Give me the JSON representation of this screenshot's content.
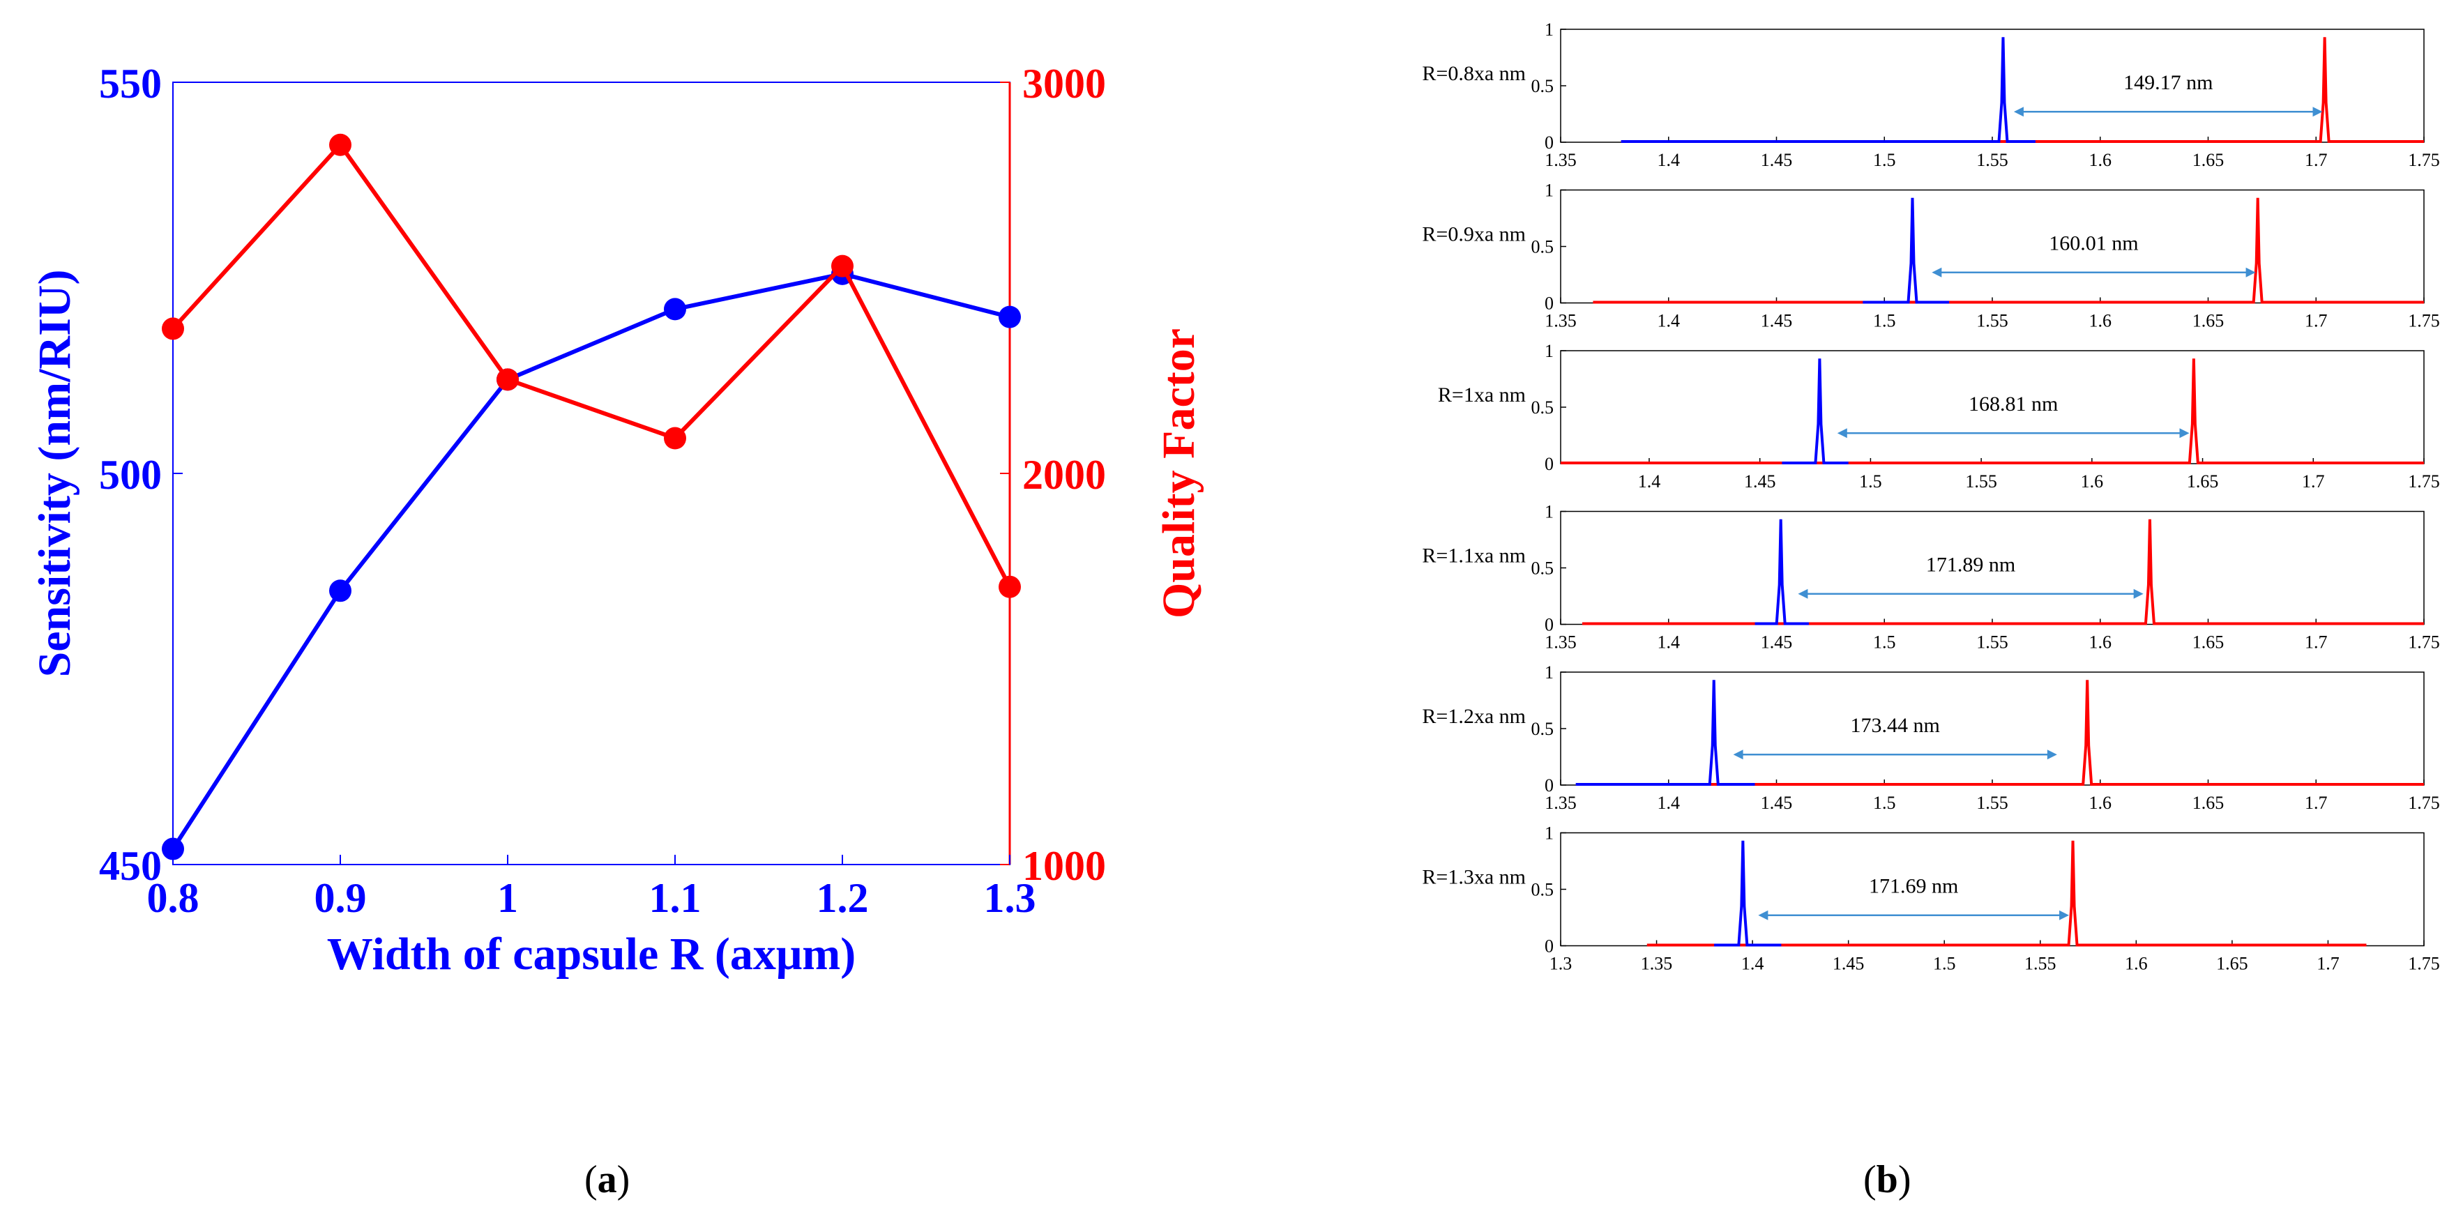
{
  "colors": {
    "blue": "#0000ff",
    "red": "#ff0000",
    "black": "#000000",
    "arrow": "#3f8fd2"
  },
  "panel_labels": {
    "a_open": "(",
    "a_letter": "a",
    "a_close": ")",
    "b_open": "(",
    "b_letter": "b",
    "b_close": ")"
  },
  "chart_data": [
    {
      "type": "line",
      "title": "",
      "xlabel": "Width of capsule R (axμm)",
      "ylabel_left": "Sensitivity (nm/RIU)",
      "ylabel_right": "Quality Factor",
      "x": [
        0.8,
        0.9,
        1.0,
        1.1,
        1.2,
        1.3
      ],
      "x_ticks": [
        "0.8",
        "0.9",
        "1",
        "1.1",
        "1.2",
        "1.3"
      ],
      "xlim": [
        0.8,
        1.3
      ],
      "ylim_left": [
        450,
        550
      ],
      "ylim_right": [
        1000,
        3000
      ],
      "y_ticks_left": [
        "450",
        "500",
        "550"
      ],
      "y_ticks_right": [
        "1000",
        "2000",
        "3000"
      ],
      "series": [
        {
          "name": "Sensitivity",
          "axis": "left",
          "color": "#0000ff",
          "values": [
            452,
            485,
            512,
            521,
            525.5,
            520
          ]
        },
        {
          "name": "Quality Factor",
          "axis": "right",
          "color": "#ff0000",
          "values": [
            2370,
            2840,
            2240,
            2090,
            2530,
            1710
          ]
        }
      ]
    },
    {
      "type": "line",
      "subplots": [
        {
          "label": "R=0.8xa nm",
          "xlim": [
            1.35,
            1.75
          ],
          "x_ticks": [
            "1.35",
            "1.4",
            "1.45",
            "1.5",
            "1.55",
            "1.6",
            "1.65",
            "1.7",
            "1.75"
          ],
          "blue_peak": 1.555,
          "blue_range": [
            1.378,
            1.57
          ],
          "red_peak": 1.704,
          "red_range": [
            1.378,
            1.75
          ],
          "annotation": "149.17 nm",
          "arrow": [
            1.56,
            1.703
          ]
        },
        {
          "label": "R=0.9xa nm",
          "xlim": [
            1.35,
            1.75
          ],
          "x_ticks": [
            "1.35",
            "1.4",
            "1.45",
            "1.5",
            "1.55",
            "1.6",
            "1.65",
            "1.7",
            "1.75"
          ],
          "blue_peak": 1.513,
          "blue_range": [
            1.49,
            1.53
          ],
          "red_peak": 1.673,
          "red_range": [
            1.365,
            1.75
          ],
          "annotation": "160.01 nm",
          "arrow": [
            1.522,
            1.672
          ]
        },
        {
          "label": "R=1xa nm",
          "xlim": [
            1.36,
            1.75
          ],
          "x_ticks": [
            "1.4",
            "1.45",
            "1.5",
            "1.55",
            "1.6",
            "1.65",
            "1.7",
            "1.75"
          ],
          "blue_peak": 1.477,
          "blue_range": [
            1.46,
            1.49
          ],
          "red_peak": 1.646,
          "red_range": [
            1.36,
            1.75
          ],
          "annotation": "168.81 nm",
          "arrow": [
            1.485,
            1.644
          ]
        },
        {
          "label": "R=1.1xa nm",
          "xlim": [
            1.35,
            1.75
          ],
          "x_ticks": [
            "1.35",
            "1.4",
            "1.45",
            "1.5",
            "1.55",
            "1.6",
            "1.65",
            "1.7",
            "1.75"
          ],
          "blue_peak": 1.452,
          "blue_range": [
            1.44,
            1.465
          ],
          "red_peak": 1.623,
          "red_range": [
            1.36,
            1.75
          ],
          "annotation": "171.89 nm",
          "arrow": [
            1.46,
            1.62
          ]
        },
        {
          "label": "R=1.2xa nm",
          "xlim": [
            1.35,
            1.75
          ],
          "x_ticks": [
            "1.35",
            "1.4",
            "1.45",
            "1.5",
            "1.55",
            "1.6",
            "1.65",
            "1.7",
            "1.75"
          ],
          "blue_peak": 1.421,
          "blue_range": [
            1.357,
            1.44
          ],
          "red_peak": 1.594,
          "red_range": [
            1.365,
            1.75
          ],
          "annotation": "173.44 nm",
          "arrow": [
            1.43,
            1.58
          ]
        },
        {
          "label": "R=1.3xa nm",
          "xlim": [
            1.3,
            1.75
          ],
          "x_ticks": [
            "1.3",
            "1.35",
            "1.4",
            "1.45",
            "1.5",
            "1.55",
            "1.6",
            "1.65",
            "1.7",
            "1.75"
          ],
          "blue_peak": 1.395,
          "blue_range": [
            1.38,
            1.415
          ],
          "red_peak": 1.567,
          "red_range": [
            1.345,
            1.72
          ],
          "annotation": "171.69 nm",
          "arrow": [
            1.403,
            1.565
          ]
        }
      ],
      "y_ticks": [
        "0",
        "0.5",
        "1"
      ],
      "ylim": [
        0,
        1
      ]
    }
  ]
}
